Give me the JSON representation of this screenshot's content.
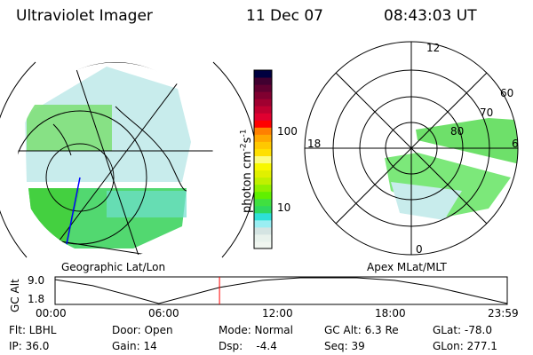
{
  "header": {
    "title": "Ultraviolet Imager",
    "date": "11 Dec 07",
    "time": "08:43:03 UT"
  },
  "left_panel": {
    "label": "Geographic Lat/Lon"
  },
  "right_panel": {
    "label": "Apex MLat/MLT",
    "mlt_labels": [
      "12",
      "18",
      "6",
      "0"
    ],
    "mlat_labels": [
      "60",
      "70",
      "80"
    ]
  },
  "colorbar": {
    "label": "photon cm",
    "sup1": "-2",
    "mid": "s",
    "sup2": "-1",
    "ticks": [
      "100",
      "10"
    ],
    "colors": [
      "#f0f6f0",
      "#e8f2ec",
      "#d4e4e2",
      "#9aeef2",
      "#2ee0d8",
      "#2ed860",
      "#40e040",
      "#60f000",
      "#90f000",
      "#c0f000",
      "#e0f000",
      "#f8f800",
      "#fcfc80",
      "#ffe000",
      "#ffc800",
      "#ffa800",
      "#ff8000",
      "#ff0000",
      "#e00030",
      "#c00030",
      "#a00030",
      "#800030",
      "#600030",
      "#400030",
      "#000040"
    ]
  },
  "chart_data": {
    "type": "line",
    "title": "",
    "xlabel": "",
    "ylabel": "GC Alt",
    "x_hours": [
      0,
      2,
      4,
      5.5,
      8.72,
      11,
      13,
      16,
      18,
      20,
      22,
      23.98
    ],
    "y": [
      8.5,
      6.8,
      4.0,
      1.8,
      6.3,
      8.3,
      9.0,
      9.0,
      8.3,
      6.6,
      4.2,
      1.8
    ],
    "ylim": [
      1.8,
      9.0
    ],
    "xlim": [
      0,
      23.98
    ],
    "ytick_labels": [
      "9.0",
      "1.8"
    ],
    "xtick_labels": [
      "00:00",
      "06:00",
      "12:00",
      "18:00",
      "23:59"
    ],
    "current_time_hours": 8.72,
    "marker_color": "#ff0000"
  },
  "info": [
    [
      "Flt: LBHL",
      "IP: 36.0"
    ],
    [
      "Door: Open",
      "Gain: 14"
    ],
    [
      "Mode: Normal",
      "Dsp:    -4.4"
    ],
    [
      "GC Alt: 6.3 Re",
      "Seq: 39"
    ],
    [
      "GLat: -78.0",
      "GLon: 277.1"
    ]
  ]
}
